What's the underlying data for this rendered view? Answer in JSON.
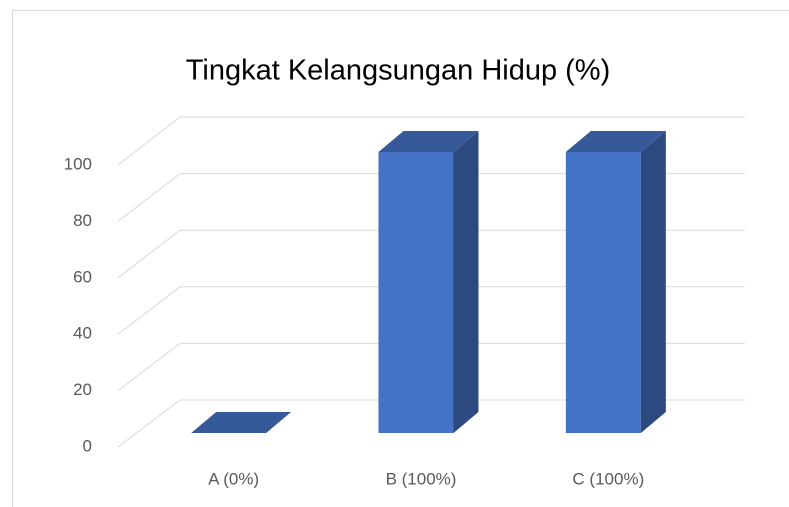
{
  "chart_data": {
    "type": "bar",
    "title": "Tingkat Kelangsungan Hidup (%)",
    "categories": [
      "A (0%)",
      "B (100%)",
      "C (100%)"
    ],
    "values": [
      0,
      100,
      100
    ],
    "color": "#4472c4",
    "ylim": [
      0,
      100
    ],
    "yticks": [
      0,
      20,
      40,
      60,
      80,
      100
    ],
    "grid": true
  }
}
